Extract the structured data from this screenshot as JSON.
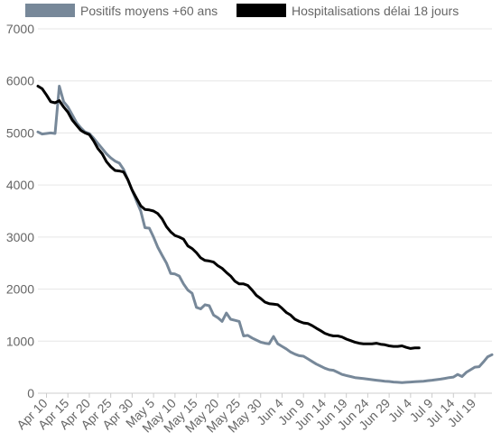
{
  "chart_data": {
    "type": "line",
    "x_type": "date",
    "x_start": "2020-04-08",
    "x_end": "2020-07-23",
    "ylim": [
      0,
      7000
    ],
    "y_ticks": [
      0,
      1000,
      2000,
      3000,
      4000,
      5000,
      6000,
      7000
    ],
    "y_tick_labels": [
      "0",
      "1000",
      "2000",
      "3000",
      "4000",
      "5000",
      "6000",
      "7000"
    ],
    "x_ticks": [
      "2020-04-10",
      "2020-04-15",
      "2020-04-20",
      "2020-04-25",
      "2020-04-30",
      "2020-05-05",
      "2020-05-10",
      "2020-05-15",
      "2020-05-20",
      "2020-05-25",
      "2020-05-30",
      "2020-06-04",
      "2020-06-09",
      "2020-06-14",
      "2020-06-19",
      "2020-06-24",
      "2020-06-29",
      "2020-07-04",
      "2020-07-09",
      "2020-07-14",
      "2020-07-19"
    ],
    "x_tick_labels": [
      "Apr 10",
      "Apr 15",
      "Apr 20",
      "Apr 25",
      "Apr 30",
      "May 5",
      "May 10",
      "May 15",
      "May 20",
      "May 25",
      "May 30",
      "Jun 4",
      "Jun 9",
      "Jun 14",
      "Jun 19",
      "Jun 24",
      "Jun 29",
      "Jul 4",
      "Jul 9",
      "Jul 14",
      "Jul 19"
    ],
    "grid": true,
    "legend_position": "top",
    "series": [
      {
        "name": "Positifs moyens +60 ans",
        "color": "#778899",
        "points": [
          [
            "2020-04-08",
            5020
          ],
          [
            "2020-04-09",
            4980
          ],
          [
            "2020-04-10",
            4990
          ],
          [
            "2020-04-11",
            5000
          ],
          [
            "2020-04-12",
            4990
          ],
          [
            "2020-04-13",
            5900
          ],
          [
            "2020-04-14",
            5600
          ],
          [
            "2020-04-15",
            5500
          ],
          [
            "2020-04-16",
            5350
          ],
          [
            "2020-04-17",
            5200
          ],
          [
            "2020-04-18",
            5100
          ],
          [
            "2020-04-19",
            5020
          ],
          [
            "2020-04-20",
            4990
          ],
          [
            "2020-04-21",
            4900
          ],
          [
            "2020-04-22",
            4800
          ],
          [
            "2020-04-23",
            4700
          ],
          [
            "2020-04-24",
            4600
          ],
          [
            "2020-04-25",
            4520
          ],
          [
            "2020-04-26",
            4460
          ],
          [
            "2020-04-27",
            4420
          ],
          [
            "2020-04-28",
            4300
          ],
          [
            "2020-04-29",
            4100
          ],
          [
            "2020-04-30",
            3900
          ],
          [
            "2020-05-01",
            3700
          ],
          [
            "2020-05-02",
            3500
          ],
          [
            "2020-05-03",
            3180
          ],
          [
            "2020-05-04",
            3170
          ],
          [
            "2020-05-05",
            3000
          ],
          [
            "2020-05-06",
            2800
          ],
          [
            "2020-05-07",
            2650
          ],
          [
            "2020-05-08",
            2500
          ],
          [
            "2020-05-09",
            2300
          ],
          [
            "2020-05-10",
            2290
          ],
          [
            "2020-05-11",
            2250
          ],
          [
            "2020-05-12",
            2100
          ],
          [
            "2020-05-13",
            1980
          ],
          [
            "2020-05-14",
            1920
          ],
          [
            "2020-05-15",
            1650
          ],
          [
            "2020-05-16",
            1620
          ],
          [
            "2020-05-17",
            1700
          ],
          [
            "2020-05-18",
            1680
          ],
          [
            "2020-05-19",
            1500
          ],
          [
            "2020-05-20",
            1450
          ],
          [
            "2020-05-21",
            1380
          ],
          [
            "2020-05-22",
            1540
          ],
          [
            "2020-05-23",
            1420
          ],
          [
            "2020-05-24",
            1400
          ],
          [
            "2020-05-25",
            1380
          ],
          [
            "2020-05-26",
            1100
          ],
          [
            "2020-05-27",
            1110
          ],
          [
            "2020-05-28",
            1060
          ],
          [
            "2020-05-29",
            1020
          ],
          [
            "2020-05-30",
            980
          ],
          [
            "2020-05-31",
            960
          ],
          [
            "2020-06-01",
            950
          ],
          [
            "2020-06-02",
            1090
          ],
          [
            "2020-06-03",
            950
          ],
          [
            "2020-06-04",
            900
          ],
          [
            "2020-06-05",
            850
          ],
          [
            "2020-06-06",
            790
          ],
          [
            "2020-06-07",
            750
          ],
          [
            "2020-06-08",
            720
          ],
          [
            "2020-06-09",
            710
          ],
          [
            "2020-06-10",
            660
          ],
          [
            "2020-06-11",
            610
          ],
          [
            "2020-06-12",
            560
          ],
          [
            "2020-06-13",
            520
          ],
          [
            "2020-06-14",
            480
          ],
          [
            "2020-06-15",
            450
          ],
          [
            "2020-06-16",
            440
          ],
          [
            "2020-06-17",
            400
          ],
          [
            "2020-06-18",
            360
          ],
          [
            "2020-06-19",
            340
          ],
          [
            "2020-06-20",
            320
          ],
          [
            "2020-06-21",
            300
          ],
          [
            "2020-06-22",
            290
          ],
          [
            "2020-06-23",
            280
          ],
          [
            "2020-06-24",
            270
          ],
          [
            "2020-06-25",
            260
          ],
          [
            "2020-06-26",
            250
          ],
          [
            "2020-06-27",
            240
          ],
          [
            "2020-06-28",
            230
          ],
          [
            "2020-06-29",
            225
          ],
          [
            "2020-06-30",
            215
          ],
          [
            "2020-07-01",
            210
          ],
          [
            "2020-07-02",
            205
          ],
          [
            "2020-07-03",
            210
          ],
          [
            "2020-07-04",
            215
          ],
          [
            "2020-07-05",
            220
          ],
          [
            "2020-07-06",
            225
          ],
          [
            "2020-07-07",
            230
          ],
          [
            "2020-07-08",
            240
          ],
          [
            "2020-07-09",
            250
          ],
          [
            "2020-07-10",
            260
          ],
          [
            "2020-07-11",
            270
          ],
          [
            "2020-07-12",
            285
          ],
          [
            "2020-07-13",
            300
          ],
          [
            "2020-07-14",
            310
          ],
          [
            "2020-07-15",
            360
          ],
          [
            "2020-07-16",
            320
          ],
          [
            "2020-07-17",
            400
          ],
          [
            "2020-07-18",
            450
          ],
          [
            "2020-07-19",
            500
          ],
          [
            "2020-07-20",
            510
          ],
          [
            "2020-07-21",
            600
          ],
          [
            "2020-07-22",
            700
          ],
          [
            "2020-07-23",
            740
          ]
        ]
      },
      {
        "name": "Hospitalisations délai 18 jours",
        "color": "#000000",
        "points": [
          [
            "2020-04-08",
            5900
          ],
          [
            "2020-04-09",
            5850
          ],
          [
            "2020-04-10",
            5730
          ],
          [
            "2020-04-11",
            5600
          ],
          [
            "2020-04-12",
            5580
          ],
          [
            "2020-04-13",
            5620
          ],
          [
            "2020-04-14",
            5500
          ],
          [
            "2020-04-15",
            5400
          ],
          [
            "2020-04-16",
            5250
          ],
          [
            "2020-04-17",
            5150
          ],
          [
            "2020-04-18",
            5050
          ],
          [
            "2020-04-19",
            5000
          ],
          [
            "2020-04-20",
            4970
          ],
          [
            "2020-04-21",
            4850
          ],
          [
            "2020-04-22",
            4700
          ],
          [
            "2020-04-23",
            4600
          ],
          [
            "2020-04-24",
            4450
          ],
          [
            "2020-04-25",
            4350
          ],
          [
            "2020-04-26",
            4280
          ],
          [
            "2020-04-27",
            4270
          ],
          [
            "2020-04-28",
            4250
          ],
          [
            "2020-04-29",
            4100
          ],
          [
            "2020-04-30",
            3900
          ],
          [
            "2020-05-01",
            3750
          ],
          [
            "2020-05-02",
            3600
          ],
          [
            "2020-05-03",
            3530
          ],
          [
            "2020-05-04",
            3520
          ],
          [
            "2020-05-05",
            3500
          ],
          [
            "2020-05-06",
            3450
          ],
          [
            "2020-05-07",
            3350
          ],
          [
            "2020-05-08",
            3200
          ],
          [
            "2020-05-09",
            3100
          ],
          [
            "2020-05-10",
            3030
          ],
          [
            "2020-05-11",
            3000
          ],
          [
            "2020-05-12",
            2960
          ],
          [
            "2020-05-13",
            2830
          ],
          [
            "2020-05-14",
            2780
          ],
          [
            "2020-05-15",
            2700
          ],
          [
            "2020-05-16",
            2600
          ],
          [
            "2020-05-17",
            2550
          ],
          [
            "2020-05-18",
            2540
          ],
          [
            "2020-05-19",
            2520
          ],
          [
            "2020-05-20",
            2450
          ],
          [
            "2020-05-21",
            2400
          ],
          [
            "2020-05-22",
            2320
          ],
          [
            "2020-05-23",
            2250
          ],
          [
            "2020-05-24",
            2150
          ],
          [
            "2020-05-25",
            2100
          ],
          [
            "2020-05-26",
            2100
          ],
          [
            "2020-05-27",
            2070
          ],
          [
            "2020-05-28",
            1980
          ],
          [
            "2020-05-29",
            1880
          ],
          [
            "2020-05-30",
            1820
          ],
          [
            "2020-05-31",
            1750
          ],
          [
            "2020-06-01",
            1720
          ],
          [
            "2020-06-02",
            1710
          ],
          [
            "2020-06-03",
            1700
          ],
          [
            "2020-06-04",
            1630
          ],
          [
            "2020-06-05",
            1550
          ],
          [
            "2020-06-06",
            1500
          ],
          [
            "2020-06-07",
            1420
          ],
          [
            "2020-06-08",
            1380
          ],
          [
            "2020-06-09",
            1350
          ],
          [
            "2020-06-10",
            1340
          ],
          [
            "2020-06-11",
            1300
          ],
          [
            "2020-06-12",
            1250
          ],
          [
            "2020-06-13",
            1200
          ],
          [
            "2020-06-14",
            1150
          ],
          [
            "2020-06-15",
            1120
          ],
          [
            "2020-06-16",
            1100
          ],
          [
            "2020-06-17",
            1100
          ],
          [
            "2020-06-18",
            1080
          ],
          [
            "2020-06-19",
            1040
          ],
          [
            "2020-06-20",
            1010
          ],
          [
            "2020-06-21",
            980
          ],
          [
            "2020-06-22",
            960
          ],
          [
            "2020-06-23",
            950
          ],
          [
            "2020-06-24",
            950
          ],
          [
            "2020-06-25",
            950
          ],
          [
            "2020-06-26",
            960
          ],
          [
            "2020-06-27",
            940
          ],
          [
            "2020-06-28",
            930
          ],
          [
            "2020-06-29",
            910
          ],
          [
            "2020-06-30",
            900
          ],
          [
            "2020-07-01",
            900
          ],
          [
            "2020-07-02",
            910
          ],
          [
            "2020-07-03",
            880
          ],
          [
            "2020-07-04",
            860
          ],
          [
            "2020-07-05",
            870
          ],
          [
            "2020-07-06",
            870
          ]
        ]
      }
    ]
  }
}
